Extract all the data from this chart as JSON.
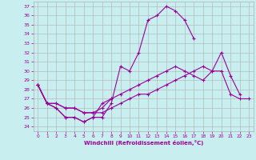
{
  "xlabel": "Windchill (Refroidissement éolien,°C)",
  "bg_color": "#c8eef0",
  "grid_color": "#b0b0b0",
  "line_color": "#990099",
  "hours": [
    0,
    1,
    2,
    3,
    4,
    5,
    6,
    7,
    8,
    9,
    10,
    11,
    12,
    13,
    14,
    15,
    16,
    17,
    18,
    19,
    20,
    21,
    22,
    23
  ],
  "series1": [
    28.5,
    26.5,
    26.0,
    25.0,
    25.0,
    24.5,
    25.0,
    25.0,
    26.5,
    30.5,
    30.0,
    32.0,
    35.5,
    36.0,
    37.0,
    36.5,
    35.5,
    33.5,
    null,
    null,
    null,
    null,
    null,
    null
  ],
  "series2": [
    28.5,
    26.5,
    26.0,
    25.0,
    25.0,
    24.5,
    25.0,
    26.5,
    27.0,
    null,
    null,
    null,
    null,
    null,
    null,
    null,
    null,
    null,
    null,
    null,
    null,
    null,
    null,
    null
  ],
  "series3": [
    28.5,
    26.5,
    26.5,
    26.0,
    26.0,
    25.5,
    25.5,
    26.0,
    27.0,
    27.5,
    28.0,
    28.5,
    29.0,
    29.5,
    30.0,
    30.5,
    30.0,
    29.5,
    29.0,
    30.0,
    32.0,
    29.5,
    27.5,
    null
  ],
  "series4": [
    28.5,
    26.5,
    26.5,
    26.0,
    26.0,
    25.5,
    25.5,
    25.5,
    26.0,
    26.5,
    27.0,
    27.5,
    27.5,
    28.0,
    28.5,
    29.0,
    29.5,
    30.0,
    30.5,
    30.0,
    30.0,
    27.5,
    27.0,
    27.0
  ],
  "ylim": [
    24,
    37
  ],
  "yticks": [
    24,
    25,
    26,
    27,
    28,
    29,
    30,
    31,
    32,
    33,
    34,
    35,
    36,
    37
  ],
  "xlim": [
    0,
    23
  ],
  "xticks": [
    0,
    1,
    2,
    3,
    4,
    5,
    6,
    7,
    8,
    9,
    10,
    11,
    12,
    13,
    14,
    15,
    16,
    17,
    18,
    19,
    20,
    21,
    22,
    23
  ],
  "marker": "+",
  "markersize": 3,
  "linewidth": 0.8
}
